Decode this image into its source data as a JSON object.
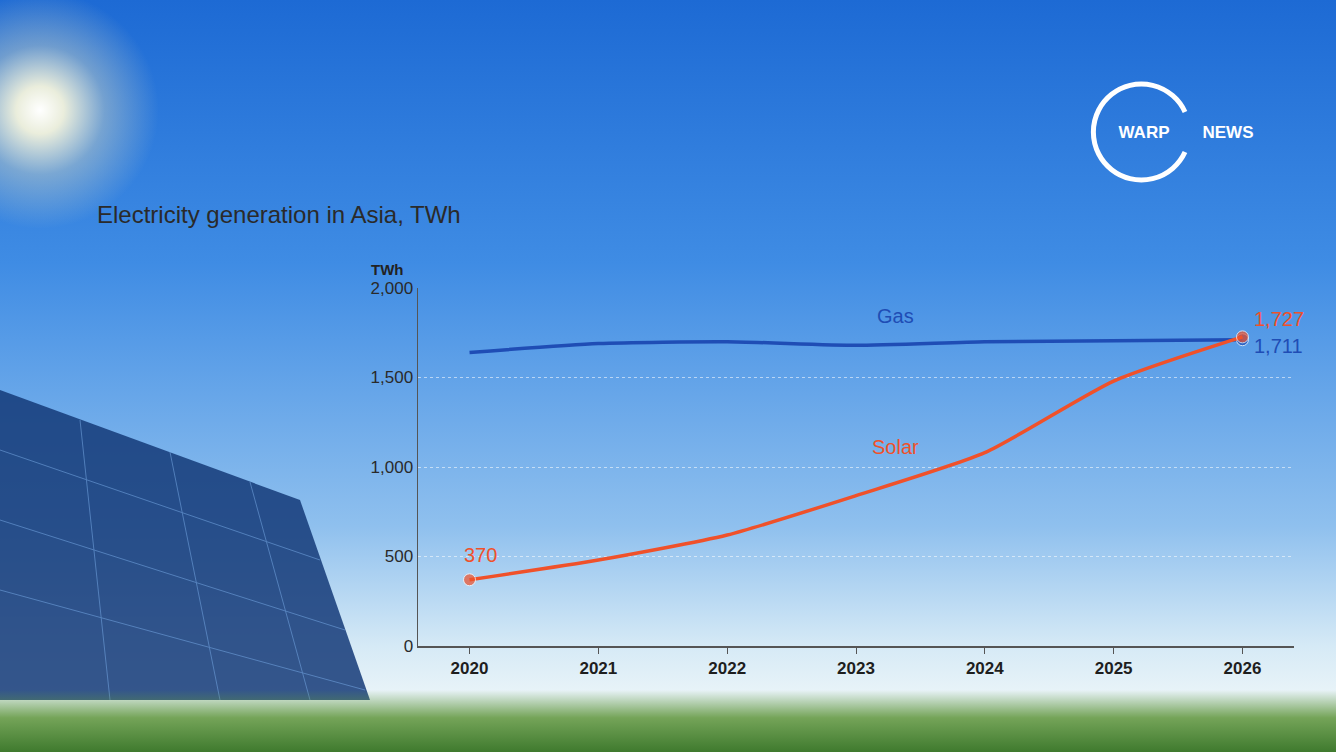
{
  "chart_data": {
    "type": "line",
    "title": "Electricity generation in Asia, TWh",
    "y_label": "TWh",
    "x": [
      2020,
      2021,
      2022,
      2023,
      2024,
      2025,
      2026
    ],
    "xlim": [
      2019.6,
      2026.4
    ],
    "xticks": [
      2020,
      2021,
      2022,
      2023,
      2024,
      2025,
      2026
    ],
    "ylim": [
      0,
      2000
    ],
    "yticks": [
      0,
      500,
      {
        "value": 1000,
        "label": "1,000"
      },
      {
        "value": 1500,
        "label": "1,500"
      },
      {
        "value": 2000,
        "label": "2,000"
      }
    ],
    "grid": true,
    "series": [
      {
        "name": "Gas",
        "color": "#1f4db5",
        "values": [
          1640,
          1690,
          1700,
          1680,
          1700,
          1705,
          1711
        ],
        "value_labels": [
          null,
          null,
          null,
          null,
          null,
          null,
          "1,711"
        ]
      },
      {
        "name": "Solar",
        "color": "#f0512a",
        "values": [
          370,
          480,
          620,
          840,
          1080,
          1480,
          1727
        ],
        "value_labels": [
          "370",
          null,
          null,
          null,
          null,
          null,
          "1,727"
        ]
      }
    ]
  },
  "logo": {
    "left": "WARP",
    "right": "NEWS"
  }
}
